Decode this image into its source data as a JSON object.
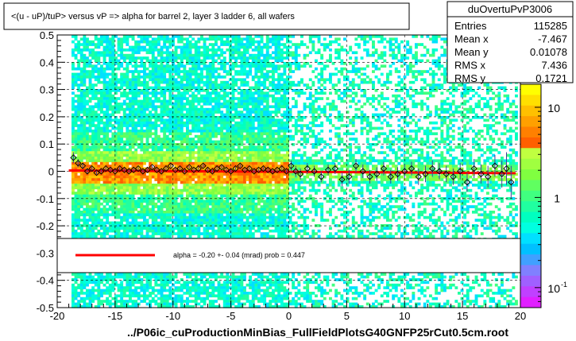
{
  "chart_data": {
    "type": "scatter",
    "title": "<(u - uP)/tuP> versus   vP => alpha for barrel 2, layer 3 ladder 6, all wafers",
    "xlabel": "../P06ic_cuProductionMinBias_FullFieldPlotsG40GNFP25rCut0.5cm.root",
    "ylabel": "",
    "xlim": [
      -20,
      20
    ],
    "ylim": [
      -0.5,
      0.5
    ],
    "x_ticks": [
      -20,
      -15,
      -10,
      -5,
      0,
      5,
      10,
      15,
      20
    ],
    "x_tick_labels": [
      "-20",
      "-15",
      "-10",
      "-5",
      "0",
      "5",
      "10",
      "15",
      "20"
    ],
    "y_ticks": [
      -0.5,
      -0.4,
      -0.3,
      -0.2,
      -0.1,
      0,
      0.1,
      0.2,
      0.3,
      0.4,
      0.5
    ],
    "y_tick_labels": [
      "-0.5",
      "-0.4",
      "-0.3",
      "-0.2",
      "-0.1",
      "0",
      "0.1",
      "0.2",
      "0.3",
      "0.4",
      "0.5"
    ],
    "grid": true,
    "stats": {
      "name": "duOvertuPvP3006",
      "rows": [
        {
          "label": "Entries",
          "value": "115285"
        },
        {
          "label": "Mean x",
          "value": "-7.467"
        },
        {
          "label": "Mean y",
          "value": "0.01078"
        },
        {
          "label": "RMS x",
          "value": "7.436"
        },
        {
          "label": "RMS y",
          "value": "0.1721"
        }
      ]
    },
    "fit": {
      "label": "alpha =   -0.20 +-  0.04 (mrad) prob = 0.447",
      "line_color": "#ff0000",
      "y_at_xmin": 0.003,
      "y_at_xmax": -0.007
    },
    "palette": {
      "labels": [
        "10",
        "1",
        "10"
      ],
      "label_values": [
        10,
        1,
        0.1
      ],
      "log_range": [
        0.06,
        18
      ],
      "superscript": "-1",
      "colors": [
        "#ffff00",
        "#ffe000",
        "#ffc000",
        "#ffa000",
        "#ff8000",
        "#ff6000",
        "#c0ff40",
        "#a0ff40",
        "#80ff40",
        "#60ff60",
        "#40ff80",
        "#20ffa0",
        "#00ffc0",
        "#00ffe0",
        "#00e0ff",
        "#00c0ff",
        "#40a0ff",
        "#8080ff",
        "#a060ff",
        "#c040ff",
        "#e020ff"
      ]
    },
    "profile_points": {
      "x": [
        -18.6,
        -18.2,
        -17.8,
        -17.4,
        -17.0,
        -16.6,
        -16.2,
        -15.8,
        -15.4,
        -15.0,
        -14.6,
        -14.2,
        -13.8,
        -13.4,
        -13.0,
        -12.6,
        -12.2,
        -11.8,
        -11.4,
        -11.0,
        -10.6,
        -10.2,
        -9.8,
        -9.4,
        -9.0,
        -8.6,
        -8.2,
        -7.8,
        -7.4,
        -7.0,
        -6.6,
        -6.2,
        -5.8,
        -5.4,
        -5.0,
        -4.6,
        -4.2,
        -3.8,
        -3.4,
        -3.0,
        -2.6,
        -2.2,
        -1.8,
        -1.4,
        -1.0,
        -0.6,
        -0.2,
        0.2,
        0.6,
        1.0,
        1.6,
        2.2,
        2.8,
        3.4,
        4.0,
        4.6,
        5.2,
        5.8,
        6.4,
        7.0,
        7.6,
        8.2,
        8.8,
        9.4,
        10.0,
        10.6,
        11.2,
        11.8,
        12.4,
        13.0,
        13.6,
        14.2,
        14.8,
        15.4,
        16.0,
        16.6,
        17.2,
        17.8,
        18.4,
        18.8,
        19.2
      ],
      "y": [
        0.05,
        0.03,
        0.02,
        0.0,
        0.01,
        -0.005,
        0.0,
        0.01,
        0.005,
        0.0,
        0.01,
        0.005,
        0.0,
        0.005,
        0.01,
        0.0,
        0.005,
        0.015,
        0.005,
        0.0,
        0.01,
        0.02,
        0.005,
        0.01,
        0.0,
        0.015,
        0.005,
        0.01,
        0.02,
        0.005,
        0.0,
        0.01,
        0.015,
        0.005,
        0.0,
        0.01,
        0.02,
        0.005,
        0.01,
        0.0,
        0.005,
        0.01,
        0.005,
        0.0,
        0.005,
        0.01,
        0.0,
        0.02,
        0.0,
        -0.01,
        0.01,
        0.0,
        -0.02,
        0.005,
        0.01,
        -0.03,
        -0.02,
        0.02,
        0.0,
        -0.02,
        -0.01,
        0.01,
        -0.02,
        -0.01,
        0.0,
        0.01,
        -0.02,
        -0.01,
        0.01,
        0.0,
        -0.01,
        -0.02,
        0.0,
        -0.04,
        0.01,
        -0.01,
        -0.02,
        0.02,
        -0.01,
        0.01,
        -0.04
      ],
      "yerr": [
        0.02,
        0.015,
        0.01,
        0.008,
        0.006,
        0.006,
        0.005,
        0.005,
        0.005,
        0.005,
        0.005,
        0.005,
        0.005,
        0.005,
        0.005,
        0.005,
        0.005,
        0.005,
        0.005,
        0.005,
        0.005,
        0.005,
        0.005,
        0.005,
        0.005,
        0.005,
        0.005,
        0.005,
        0.005,
        0.005,
        0.005,
        0.005,
        0.005,
        0.005,
        0.005,
        0.005,
        0.005,
        0.005,
        0.005,
        0.005,
        0.005,
        0.005,
        0.005,
        0.005,
        0.005,
        0.005,
        0.005,
        0.02,
        0.02,
        0.02,
        0.02,
        0.02,
        0.02,
        0.02,
        0.02,
        0.025,
        0.025,
        0.025,
        0.025,
        0.025,
        0.025,
        0.025,
        0.025,
        0.025,
        0.025,
        0.025,
        0.03,
        0.03,
        0.03,
        0.03,
        0.03,
        0.03,
        0.03,
        0.035,
        0.035,
        0.035,
        0.04,
        0.04,
        0.05,
        0.06,
        0.06
      ]
    }
  }
}
